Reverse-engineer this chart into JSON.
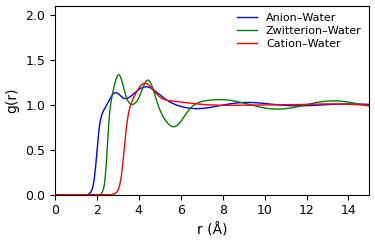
{
  "title": "",
  "xlabel": "r (Å)",
  "ylabel": "g(r)",
  "xlim": [
    0,
    15
  ],
  "ylim": [
    0,
    2.1
  ],
  "xticks": [
    0,
    2,
    4,
    6,
    8,
    10,
    12,
    14
  ],
  "yticks": [
    0,
    0.5,
    1.0,
    1.5,
    2.0
  ],
  "legend": [
    "Anion–Water",
    "Zwitterion–Water",
    "Cation–Water"
  ],
  "colors": [
    "blue",
    "green",
    "red"
  ],
  "figsize": [
    3.75,
    2.43
  ],
  "dpi": 100
}
